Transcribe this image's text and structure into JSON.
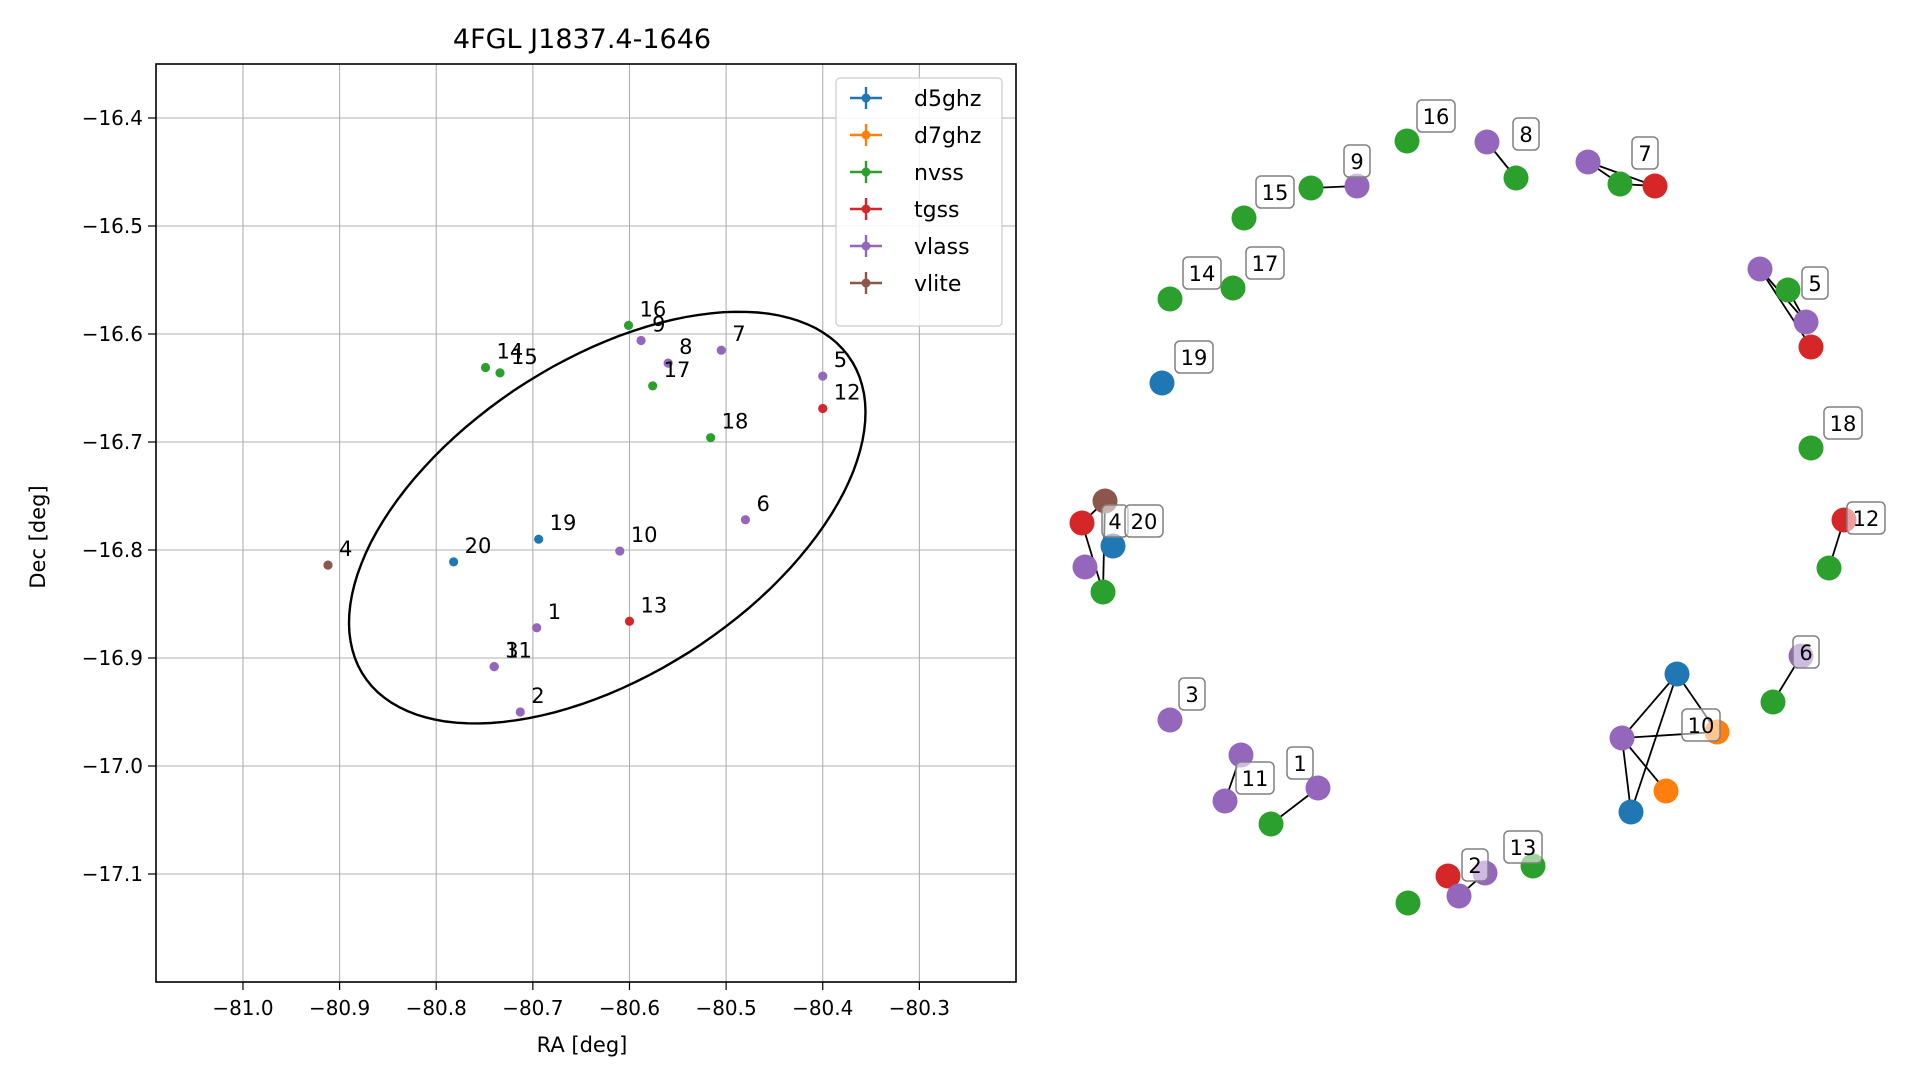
{
  "chart_data": [
    {
      "type": "scatter",
      "title": "4FGL J1837.4-1646",
      "xlabel": "RA [deg]",
      "ylabel": "Dec [deg]",
      "xlim": [
        -81.09,
        -80.2
      ],
      "ylim": [
        -17.2,
        -16.35
      ],
      "xticks": [
        -81.0,
        -80.9,
        -80.8,
        -80.7,
        -80.6,
        -80.5,
        -80.4,
        -80.3
      ],
      "yticks": [
        -16.4,
        -16.5,
        -16.6,
        -16.7,
        -16.8,
        -16.9,
        -17.0,
        -17.1
      ],
      "grid": true,
      "legend_position": "top-right",
      "ellipse": {
        "center": [
          -80.623,
          -16.77
        ],
        "semi_major_deg": 0.292,
        "semi_minor_deg": 0.15,
        "angle_deg": 28
      },
      "series": [
        {
          "name": "d5ghz",
          "color": "#1f77b4",
          "points": [
            {
              "label": "20",
              "x": -80.782,
              "y": -16.811
            },
            {
              "label": "19",
              "x": -80.694,
              "y": -16.79
            }
          ]
        },
        {
          "name": "d7ghz",
          "color": "#ff7f0e",
          "points": []
        },
        {
          "name": "nvss",
          "color": "#2ca02c",
          "points": [
            {
              "label": "16",
              "x": -80.601,
              "y": -16.592
            },
            {
              "label": "14",
              "x": -80.749,
              "y": -16.631
            },
            {
              "label": "15",
              "x": -80.734,
              "y": -16.636
            },
            {
              "label": "17",
              "x": -80.576,
              "y": -16.648
            },
            {
              "label": "18",
              "x": -80.516,
              "y": -16.696
            }
          ]
        },
        {
          "name": "tgss",
          "color": "#d62728",
          "points": [
            {
              "label": "12",
              "x": -80.4,
              "y": -16.669
            },
            {
              "label": "13",
              "x": -80.6,
              "y": -16.866
            }
          ]
        },
        {
          "name": "vlass",
          "color": "#9467bd",
          "points": [
            {
              "label": "9",
              "x": -80.588,
              "y": -16.606
            },
            {
              "label": "8",
              "x": -80.56,
              "y": -16.627
            },
            {
              "label": "7",
              "x": -80.505,
              "y": -16.615
            },
            {
              "label": "5",
              "x": -80.4,
              "y": -16.639
            },
            {
              "label": "6",
              "x": -80.48,
              "y": -16.772
            },
            {
              "label": "10",
              "x": -80.61,
              "y": -16.801
            },
            {
              "label": "1",
              "x": -80.696,
              "y": -16.872
            },
            {
              "label": "3",
              "x": -80.74,
              "y": -16.908
            },
            {
              "label": "11",
              "x": -80.74,
              "y": -16.908
            },
            {
              "label": "2",
              "x": -80.713,
              "y": -16.95
            }
          ]
        },
        {
          "name": "vlite",
          "color": "#8c564b",
          "points": [
            {
              "label": "4",
              "x": -80.912,
              "y": -16.814
            }
          ]
        }
      ]
    },
    {
      "type": "network",
      "node_colors": {
        "d5ghz": "#1f77b4",
        "d7ghz": "#ff7f0e",
        "nvss": "#2ca02c",
        "tgss": "#d62728",
        "vlass": "#9467bd",
        "vlite": "#8c564b"
      },
      "groups": [
        {
          "id": "16",
          "nodes": [
            "nvss"
          ]
        },
        {
          "id": "8",
          "nodes": [
            "vlass",
            "nvss"
          ]
        },
        {
          "id": "9",
          "nodes": [
            "vlass",
            "nvss"
          ]
        },
        {
          "id": "15",
          "nodes": [
            "nvss"
          ]
        },
        {
          "id": "7",
          "nodes": [
            "vlass",
            "nvss",
            "tgss"
          ]
        },
        {
          "id": "14",
          "nodes": [
            "nvss"
          ]
        },
        {
          "id": "17",
          "nodes": [
            "nvss"
          ]
        },
        {
          "id": "5",
          "nodes": [
            "vlass",
            "nvss",
            "vlass",
            "tgss"
          ]
        },
        {
          "id": "19",
          "nodes": [
            "d5ghz"
          ]
        },
        {
          "id": "18",
          "nodes": [
            "nvss"
          ]
        },
        {
          "id": "4",
          "nodes": [
            "vlite",
            "tgss",
            "d5ghz",
            "vlass",
            "nvss"
          ]
        },
        {
          "id": "20",
          "nodes": []
        },
        {
          "id": "12",
          "nodes": [
            "tgss",
            "nvss"
          ]
        },
        {
          "id": "6",
          "nodes": [
            "vlass",
            "nvss"
          ]
        },
        {
          "id": "10",
          "nodes": [
            "d5ghz",
            "vlass",
            "d7ghz",
            "d7ghz",
            "d5ghz"
          ]
        },
        {
          "id": "3",
          "nodes": [
            "vlass"
          ]
        },
        {
          "id": "1",
          "nodes": [
            "vlass",
            "nvss"
          ]
        },
        {
          "id": "11",
          "nodes": [
            "vlass",
            "vlass"
          ]
        },
        {
          "id": "2",
          "nodes": [
            "tgss",
            "vlass",
            "vlass",
            "nvss"
          ]
        },
        {
          "id": "13",
          "nodes": [
            "nvss"
          ]
        }
      ]
    }
  ]
}
